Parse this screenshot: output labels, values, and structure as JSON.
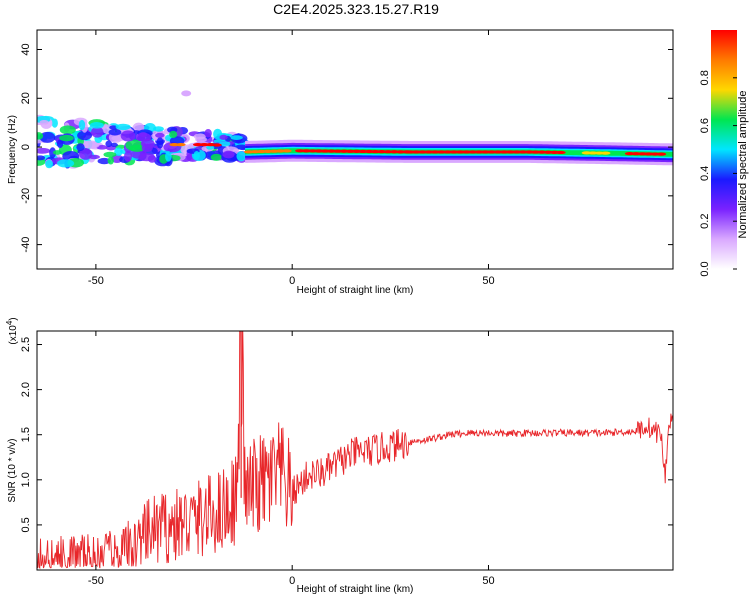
{
  "title": "C2E4.2025.323.15.27.R19",
  "chart_data": [
    {
      "type": "heatmap",
      "xlabel": "Height of straight line (km)",
      "ylabel": "Frequency (Hz)",
      "xlim": [
        -65,
        97
      ],
      "ylim": [
        -50,
        48
      ],
      "xticks": [
        -50,
        0,
        50
      ],
      "yticks": [
        -40,
        -20,
        0,
        20,
        40
      ],
      "colorbar": {
        "label": "Normalized spectral amplitude",
        "range": [
          0,
          1
        ],
        "ticks": [
          "0.0",
          "0.2",
          "0.4",
          "0.6",
          "0.8"
        ],
        "colors": [
          "#ffffff",
          "#d9a8ff",
          "#7a22ff",
          "#1a1aff",
          "#00e6ff",
          "#00e650",
          "#ffd700",
          "#ff7a00",
          "#ff0000"
        ]
      },
      "ridge": [
        {
          "x": -65,
          "freq": 2
        },
        {
          "x": -50,
          "freq": 2
        },
        {
          "x": -40,
          "freq": 1
        },
        {
          "x": -30,
          "freq": 1
        },
        {
          "x": -20,
          "freq": 1
        },
        {
          "x": -15,
          "freq": 0
        },
        {
          "x": -12,
          "freq": -2
        },
        {
          "x": 0,
          "freq": -1.5
        },
        {
          "x": 30,
          "freq": -2
        },
        {
          "x": 60,
          "freq": -2
        },
        {
          "x": 80,
          "freq": -2.5
        },
        {
          "x": 97,
          "freq": -3
        }
      ]
    },
    {
      "type": "line",
      "xlabel": "Height of straight line (km)",
      "ylabel": "SNR (10 * v/v)",
      "yscale_label": "(x10",
      "yscale_exp": "4",
      "yscale_close": ")",
      "xlim": [
        -65,
        97
      ],
      "ylim": [
        0,
        2.65
      ],
      "xticks": [
        -50,
        0,
        50
      ],
      "yticks": [
        "0.5",
        "1.0",
        "1.5",
        "2.0",
        "2.5"
      ],
      "color": "#e8262a",
      "series": [
        {
          "x": [
            -65,
            -60,
            -55,
            -50,
            -45,
            -40,
            -35,
            -30,
            -25,
            -20,
            -16,
            -14,
            -13,
            -12,
            -10,
            -6,
            -3,
            0,
            4,
            8,
            12,
            16,
            20,
            25,
            30,
            35,
            40,
            45,
            50,
            55,
            60,
            70,
            80,
            88,
            90,
            92,
            94,
            95,
            96,
            97
          ],
          "values": [
            0.08,
            0.1,
            0.12,
            0.12,
            0.15,
            0.28,
            0.45,
            0.48,
            0.55,
            0.62,
            0.72,
            0.85,
            2.65,
            0.8,
            0.9,
            0.98,
            1.05,
            0.85,
            1.05,
            1.08,
            1.2,
            1.3,
            1.32,
            1.37,
            1.42,
            1.45,
            1.5,
            1.52,
            1.52,
            1.51,
            1.52,
            1.52,
            1.52,
            1.54,
            1.6,
            1.55,
            1.5,
            1.0,
            1.7,
            1.6
          ]
        }
      ]
    }
  ]
}
